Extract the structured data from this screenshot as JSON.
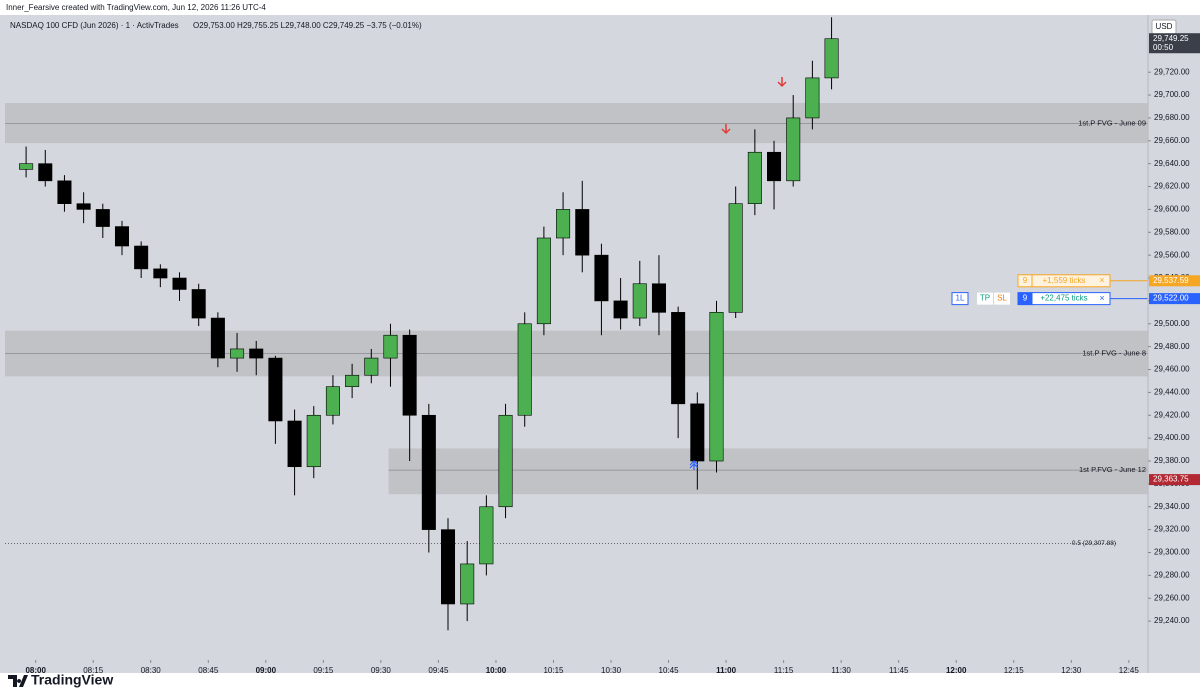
{
  "header": {
    "credit": "Inner_Fearsive created with TradingView.com, Jun 12, 2026 11:26 UTC-4",
    "symbol": "NASDAQ 100 CFD (Jun 2026) · 1 · ActivTrades",
    "ohlc": "O29,753.00 H29,755.25 L29,748.00 C29,749.25 −3.75 (−0.01%)",
    "currency": "USD"
  },
  "footer": {
    "brand": "TradingView"
  },
  "chart_data": {
    "type": "candlestick",
    "x": [
      "07:55",
      "08:00",
      "08:05",
      "08:10",
      "08:15",
      "08:20",
      "08:25",
      "08:30",
      "08:35",
      "08:40",
      "08:45",
      "08:50",
      "08:55",
      "09:00",
      "09:05",
      "09:10",
      "09:15",
      "09:20",
      "09:25",
      "09:30",
      "09:35",
      "09:40",
      "09:45",
      "09:50",
      "09:55",
      "10:00",
      "10:05",
      "10:10",
      "10:15",
      "10:20",
      "10:25",
      "10:30",
      "10:35",
      "10:40",
      "10:45",
      "10:50",
      "10:55",
      "11:00",
      "11:05",
      "11:10",
      "11:15",
      "11:20",
      "11:25"
    ],
    "open": [
      29635,
      29640,
      29625,
      29605,
      29600,
      29585,
      29568,
      29548,
      29540,
      29530,
      29505,
      29470,
      29478,
      29470,
      29415,
      29375,
      29420,
      29445,
      29455,
      29470,
      29490,
      29420,
      29320,
      29255,
      29290,
      29340,
      29420,
      29500,
      29575,
      29600,
      29560,
      29520,
      29505,
      29535,
      29510,
      29430,
      29380,
      29510,
      29605,
      29650,
      29625,
      29680,
      29715
    ],
    "high": [
      29655,
      29652,
      29630,
      29615,
      29605,
      29590,
      29572,
      29552,
      29545,
      29535,
      29510,
      29492,
      29485,
      29472,
      29425,
      29428,
      29455,
      29465,
      29478,
      29500,
      29495,
      29430,
      29330,
      29310,
      29350,
      29430,
      29510,
      29585,
      29615,
      29625,
      29570,
      29540,
      29555,
      29560,
      29515,
      29440,
      29520,
      29620,
      29670,
      29660,
      29700,
      29730,
      29768
    ],
    "low": [
      29628,
      29620,
      29598,
      29588,
      29575,
      29560,
      29540,
      29532,
      29520,
      29498,
      29462,
      29458,
      29455,
      29395,
      29350,
      29365,
      29412,
      29435,
      29448,
      29445,
      29380,
      29300,
      29232,
      29240,
      29280,
      29330,
      29410,
      29490,
      29560,
      29545,
      29490,
      29495,
      29498,
      29490,
      29400,
      29355,
      29370,
      29505,
      29595,
      29600,
      29620,
      29670,
      29705
    ],
    "close": [
      29640,
      29625,
      29605,
      29600,
      29585,
      29568,
      29548,
      29540,
      29530,
      29505,
      29470,
      29478,
      29470,
      29415,
      29375,
      29420,
      29445,
      29455,
      29470,
      29490,
      29420,
      29320,
      29255,
      29290,
      29340,
      29420,
      29500,
      29575,
      29600,
      29560,
      29520,
      29505,
      29535,
      29510,
      29430,
      29380,
      29510,
      29605,
      29650,
      29625,
      29680,
      29715,
      29749.25
    ],
    "up_color": "#4caf50",
    "down_color": "#000000",
    "xlim": [
      "07:52",
      "12:50"
    ],
    "xticks": [
      "08:00",
      "08:15",
      "08:30",
      "08:45",
      "09:00",
      "09:15",
      "09:30",
      "09:45",
      "10:00",
      "10:15",
      "10:30",
      "10:45",
      "11:00",
      "11:15",
      "11:30",
      "11:45",
      "12:00",
      "12:15",
      "12:30",
      "12:45"
    ],
    "ylim": [
      29206,
      29770
    ],
    "yticks": [
      {
        "value": 29240,
        "label": "29,240.00"
      },
      {
        "value": 29260,
        "label": "29,260.00"
      },
      {
        "value": 29280,
        "label": "29,280.00"
      },
      {
        "value": 29300,
        "label": "29,300.00"
      },
      {
        "value": 29320,
        "label": "29,320.00"
      },
      {
        "value": 29340,
        "label": "29,340.00"
      },
      {
        "value": 29360,
        "label": "29,360.00"
      },
      {
        "value": 29380,
        "label": "29,380.00"
      },
      {
        "value": 29400,
        "label": "29,400.00"
      },
      {
        "value": 29420,
        "label": "29,420.00"
      },
      {
        "value": 29440,
        "label": "29,440.00"
      },
      {
        "value": 29460,
        "label": "29,460.00"
      },
      {
        "value": 29480,
        "label": "29,480.00"
      },
      {
        "value": 29500,
        "label": "29,500.00"
      },
      {
        "value": 29520,
        "label": "29,520.00"
      },
      {
        "value": 29540,
        "label": "29,540.00"
      },
      {
        "value": 29560,
        "label": "29,560.00"
      },
      {
        "value": 29580,
        "label": "29,580.00"
      },
      {
        "value": 29600,
        "label": "29,600.00"
      },
      {
        "value": 29620,
        "label": "29,620.00"
      },
      {
        "value": 29640,
        "label": "29,640.00"
      },
      {
        "value": 29660,
        "label": "29,660.00"
      },
      {
        "value": 29680,
        "label": "29,680.00"
      },
      {
        "value": 29700,
        "label": "29,700.00"
      },
      {
        "value": 29720,
        "label": "29,720.00"
      }
    ],
    "zones": [
      {
        "top": 29693,
        "bottom": 29658,
        "line": 29675,
        "label": "1st.P FVG - June 09"
      },
      {
        "top": 29494,
        "bottom": 29454,
        "line": 29474,
        "label": "1st.P FVG - June 8"
      },
      {
        "top": 29391,
        "bottom": 29351,
        "line": 29372,
        "label": "1st P.FVG - June 12",
        "from": "09:32"
      }
    ],
    "level": {
      "value": 29307.88,
      "label": "0.5 (29,307.88)"
    },
    "price_labels": [
      {
        "value": 29749.25,
        "label": "29,749.25",
        "countdown": "00:50",
        "color": "#3b3f4a"
      },
      {
        "value": 29537.59,
        "label": "29,537.59",
        "color": "#f5a623"
      },
      {
        "value": 29522,
        "label": "29,522.00",
        "color": "#2962ff"
      },
      {
        "value": 29363.75,
        "label": "29,363.75",
        "color": "#b22833"
      }
    ],
    "orders": [
      {
        "value": 29537.59,
        "qty": 9,
        "ticks": "+1,559 ticks",
        "close": "×",
        "color": "#f5a623"
      },
      {
        "value": 29522,
        "qty": 9,
        "ticks": "+22,475 ticks",
        "close": "×",
        "color": "#2962ff",
        "buttons": [
          "1L",
          "TP",
          "SL"
        ]
      }
    ]
  }
}
